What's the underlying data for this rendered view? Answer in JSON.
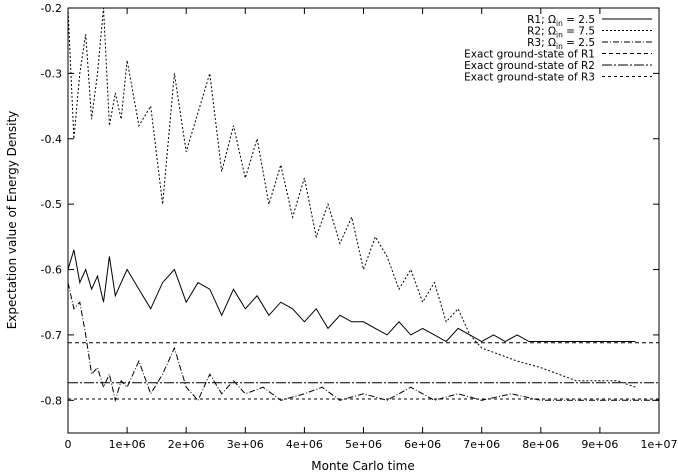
{
  "chart_data": {
    "type": "line",
    "xlabel": "Monte Carlo time",
    "ylabel": "Expectation value of Energy Density",
    "xlim": [
      0,
      10000000
    ],
    "ylim": [
      -0.85,
      -0.2
    ],
    "grid": false,
    "legend_position": "top-right",
    "x_ticks": [
      {
        "value": 0,
        "label": "0"
      },
      {
        "value": 1000000,
        "label": "1e+06"
      },
      {
        "value": 2000000,
        "label": "2e+06"
      },
      {
        "value": 3000000,
        "label": "3e+06"
      },
      {
        "value": 4000000,
        "label": "4e+06"
      },
      {
        "value": 5000000,
        "label": "5e+06"
      },
      {
        "value": 6000000,
        "label": "6e+06"
      },
      {
        "value": 7000000,
        "label": "7e+06"
      },
      {
        "value": 8000000,
        "label": "8e+06"
      },
      {
        "value": 9000000,
        "label": "9e+06"
      },
      {
        "value": 10000000,
        "label": "1e+07"
      }
    ],
    "y_ticks": [
      {
        "value": -0.2,
        "label": "-0.2"
      },
      {
        "value": -0.3,
        "label": "-0.3"
      },
      {
        "value": -0.4,
        "label": "-0.4"
      },
      {
        "value": -0.5,
        "label": "-0.5"
      },
      {
        "value": -0.6,
        "label": "-0.6"
      },
      {
        "value": -0.7,
        "label": "-0.7"
      },
      {
        "value": -0.8,
        "label": "-0.8"
      }
    ],
    "series": [
      {
        "name": "R1; Ω_in = 2.5",
        "label_prefix": "R1; Ω",
        "label_sub": "in",
        "label_suffix": " = 2.5",
        "dash": "",
        "x": [
          0,
          100000,
          200000,
          300000,
          400000,
          500000,
          600000,
          700000,
          800000,
          900000,
          1000000,
          1200000,
          1400000,
          1600000,
          1800000,
          2000000,
          2200000,
          2400000,
          2600000,
          2800000,
          3000000,
          3200000,
          3400000,
          3600000,
          3800000,
          4000000,
          4200000,
          4400000,
          4600000,
          4800000,
          5000000,
          5200000,
          5400000,
          5600000,
          5800000,
          6000000,
          6200000,
          6400000,
          6600000,
          6800000,
          7000000,
          7200000,
          7400000,
          7600000,
          7800000,
          8000000,
          8300000,
          8600000,
          9000000,
          9300000,
          9600000
        ],
        "y": [
          -0.6,
          -0.57,
          -0.62,
          -0.6,
          -0.63,
          -0.61,
          -0.65,
          -0.58,
          -0.64,
          -0.62,
          -0.6,
          -0.63,
          -0.66,
          -0.62,
          -0.6,
          -0.65,
          -0.62,
          -0.63,
          -0.67,
          -0.63,
          -0.66,
          -0.64,
          -0.67,
          -0.65,
          -0.66,
          -0.68,
          -0.66,
          -0.69,
          -0.67,
          -0.68,
          -0.68,
          -0.69,
          -0.7,
          -0.68,
          -0.7,
          -0.69,
          -0.7,
          -0.71,
          -0.69,
          -0.7,
          -0.71,
          -0.7,
          -0.71,
          -0.7,
          -0.71,
          -0.71,
          -0.71,
          -0.71,
          -0.71,
          -0.71,
          -0.71
        ]
      },
      {
        "name": "R2; Ω_in = 7.5",
        "label_prefix": "R2; Ω",
        "label_sub": "in",
        "label_suffix": " = 7.5",
        "dash": "2,2",
        "x": [
          0,
          100000,
          200000,
          300000,
          400000,
          500000,
          600000,
          700000,
          800000,
          900000,
          1000000,
          1200000,
          1400000,
          1600000,
          1800000,
          2000000,
          2200000,
          2400000,
          2600000,
          2800000,
          3000000,
          3200000,
          3400000,
          3600000,
          3800000,
          4000000,
          4200000,
          4400000,
          4600000,
          4800000,
          5000000,
          5200000,
          5400000,
          5600000,
          5800000,
          6000000,
          6200000,
          6400000,
          6600000,
          6800000,
          7000000,
          7300000,
          7600000,
          8000000,
          8300000,
          8600000,
          9000000,
          9300000,
          9600000
        ],
        "y": [
          -0.2,
          -0.4,
          -0.3,
          -0.24,
          -0.37,
          -0.3,
          -0.2,
          -0.38,
          -0.33,
          -0.37,
          -0.28,
          -0.38,
          -0.35,
          -0.5,
          -0.3,
          -0.42,
          -0.36,
          -0.3,
          -0.45,
          -0.38,
          -0.46,
          -0.4,
          -0.5,
          -0.44,
          -0.52,
          -0.46,
          -0.55,
          -0.5,
          -0.56,
          -0.52,
          -0.6,
          -0.55,
          -0.58,
          -0.63,
          -0.6,
          -0.65,
          -0.62,
          -0.68,
          -0.66,
          -0.7,
          -0.72,
          -0.73,
          -0.74,
          -0.75,
          -0.76,
          -0.77,
          -0.77,
          -0.77,
          -0.78
        ]
      },
      {
        "name": "R3; Ω_in = 2.5",
        "label_prefix": "R3; Ω",
        "label_sub": "in",
        "label_suffix": " = 2.5",
        "dash": "6,2,1,2",
        "x": [
          0,
          100000,
          200000,
          300000,
          400000,
          500000,
          600000,
          700000,
          800000,
          900000,
          1000000,
          1200000,
          1400000,
          1600000,
          1800000,
          2000000,
          2200000,
          2400000,
          2600000,
          2800000,
          3000000,
          3300000,
          3600000,
          4000000,
          4300000,
          4600000,
          5000000,
          5400000,
          5800000,
          6200000,
          6600000,
          7000000,
          7500000,
          8000000,
          8500000,
          9000000,
          9500000,
          10000000
        ],
        "y": [
          -0.62,
          -0.66,
          -0.65,
          -0.7,
          -0.76,
          -0.75,
          -0.78,
          -0.76,
          -0.8,
          -0.77,
          -0.78,
          -0.74,
          -0.79,
          -0.76,
          -0.72,
          -0.78,
          -0.8,
          -0.76,
          -0.79,
          -0.77,
          -0.79,
          -0.78,
          -0.8,
          -0.79,
          -0.78,
          -0.8,
          -0.79,
          -0.8,
          -0.78,
          -0.8,
          -0.79,
          -0.8,
          -0.79,
          -0.8,
          -0.8,
          -0.8,
          -0.8,
          -0.8
        ]
      },
      {
        "name": "Exact ground-state of R1",
        "dash": "4,3",
        "y_const": -0.712
      },
      {
        "name": "Exact ground-state of R2",
        "dash": "10,2,2,2",
        "y_const": -0.773
      },
      {
        "name": "Exact ground-state of R3",
        "dash": "3,3",
        "y_const": -0.798
      }
    ]
  }
}
